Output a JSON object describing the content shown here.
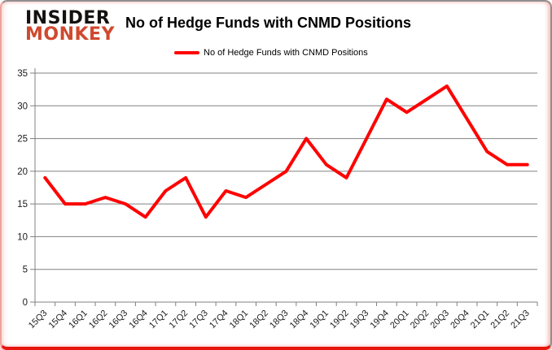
{
  "logo": {
    "line1": "INSIDER",
    "line2": "MONKEY"
  },
  "title": "No of Hedge Funds with CNMD Positions",
  "legend": {
    "label": "No of Hedge Funds with CNMD Positions"
  },
  "colors": {
    "line": "#ff0000",
    "logo_red": "#d0492e",
    "grid": "#808080",
    "axis": "#808080",
    "tick_label": "#1a1a1a",
    "frame_red": "#e8150c"
  },
  "chart_data": {
    "type": "line",
    "title": "No of Hedge Funds with CNMD Positions",
    "categories": [
      "15Q3",
      "15Q4",
      "16Q1",
      "16Q2",
      "16Q3",
      "16Q4",
      "17Q1",
      "17Q2",
      "17Q3",
      "17Q4",
      "18Q1",
      "18Q2",
      "18Q3",
      "18Q4",
      "19Q1",
      "19Q2",
      "19Q3",
      "19Q4",
      "20Q1",
      "20Q2",
      "20Q3",
      "20Q4",
      "21Q1",
      "21Q2",
      "21Q3"
    ],
    "series": [
      {
        "name": "No of Hedge Funds with CNMD Positions",
        "values": [
          19,
          15,
          15,
          16,
          15,
          13,
          17,
          19,
          13,
          17,
          16,
          18,
          20,
          25,
          21,
          19,
          25,
          31,
          29,
          31,
          33,
          28,
          23,
          21,
          21
        ]
      }
    ],
    "xlabel": "",
    "ylabel": "",
    "ylim": [
      0,
      35
    ],
    "ytick_step": 5,
    "grid": "horizontal",
    "legend_position": "top-center"
  }
}
